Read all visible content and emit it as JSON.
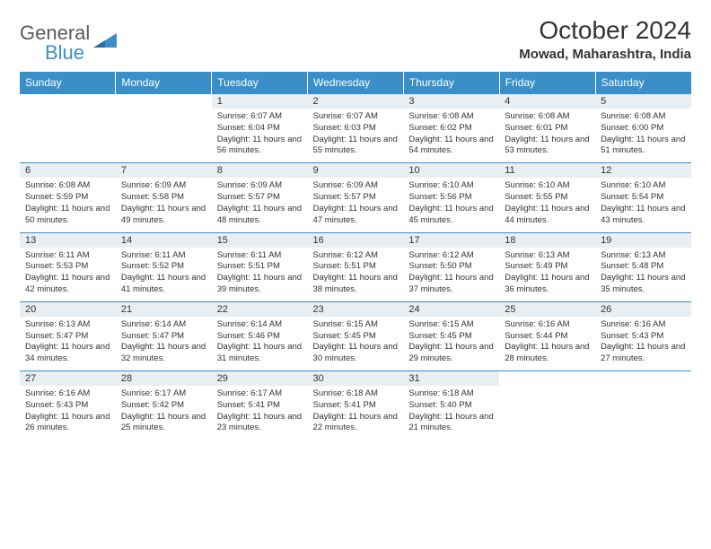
{
  "logo": {
    "text1": "General",
    "text2": "Blue"
  },
  "title": "October 2024",
  "location": "Mowad, Maharashtra, India",
  "colors": {
    "header_bg": "#3a8fc8",
    "header_fg": "#ffffff",
    "daynum_bg": "#e8eef2",
    "border": "#3a8fc8",
    "text": "#333333",
    "logo_gray": "#5a5a5a",
    "logo_blue": "#3a8fc8"
  },
  "weekdays": [
    "Sunday",
    "Monday",
    "Tuesday",
    "Wednesday",
    "Thursday",
    "Friday",
    "Saturday"
  ],
  "weeks": [
    [
      {
        "empty": true
      },
      {
        "empty": true
      },
      {
        "n": "1",
        "sr": "6:07 AM",
        "ss": "6:04 PM",
        "dl": "11 hours and 56 minutes."
      },
      {
        "n": "2",
        "sr": "6:07 AM",
        "ss": "6:03 PM",
        "dl": "11 hours and 55 minutes."
      },
      {
        "n": "3",
        "sr": "6:08 AM",
        "ss": "6:02 PM",
        "dl": "11 hours and 54 minutes."
      },
      {
        "n": "4",
        "sr": "6:08 AM",
        "ss": "6:01 PM",
        "dl": "11 hours and 53 minutes."
      },
      {
        "n": "5",
        "sr": "6:08 AM",
        "ss": "6:00 PM",
        "dl": "11 hours and 51 minutes."
      }
    ],
    [
      {
        "n": "6",
        "sr": "6:08 AM",
        "ss": "5:59 PM",
        "dl": "11 hours and 50 minutes."
      },
      {
        "n": "7",
        "sr": "6:09 AM",
        "ss": "5:58 PM",
        "dl": "11 hours and 49 minutes."
      },
      {
        "n": "8",
        "sr": "6:09 AM",
        "ss": "5:57 PM",
        "dl": "11 hours and 48 minutes."
      },
      {
        "n": "9",
        "sr": "6:09 AM",
        "ss": "5:57 PM",
        "dl": "11 hours and 47 minutes."
      },
      {
        "n": "10",
        "sr": "6:10 AM",
        "ss": "5:56 PM",
        "dl": "11 hours and 45 minutes."
      },
      {
        "n": "11",
        "sr": "6:10 AM",
        "ss": "5:55 PM",
        "dl": "11 hours and 44 minutes."
      },
      {
        "n": "12",
        "sr": "6:10 AM",
        "ss": "5:54 PM",
        "dl": "11 hours and 43 minutes."
      }
    ],
    [
      {
        "n": "13",
        "sr": "6:11 AM",
        "ss": "5:53 PM",
        "dl": "11 hours and 42 minutes."
      },
      {
        "n": "14",
        "sr": "6:11 AM",
        "ss": "5:52 PM",
        "dl": "11 hours and 41 minutes."
      },
      {
        "n": "15",
        "sr": "6:11 AM",
        "ss": "5:51 PM",
        "dl": "11 hours and 39 minutes."
      },
      {
        "n": "16",
        "sr": "6:12 AM",
        "ss": "5:51 PM",
        "dl": "11 hours and 38 minutes."
      },
      {
        "n": "17",
        "sr": "6:12 AM",
        "ss": "5:50 PM",
        "dl": "11 hours and 37 minutes."
      },
      {
        "n": "18",
        "sr": "6:13 AM",
        "ss": "5:49 PM",
        "dl": "11 hours and 36 minutes."
      },
      {
        "n": "19",
        "sr": "6:13 AM",
        "ss": "5:48 PM",
        "dl": "11 hours and 35 minutes."
      }
    ],
    [
      {
        "n": "20",
        "sr": "6:13 AM",
        "ss": "5:47 PM",
        "dl": "11 hours and 34 minutes."
      },
      {
        "n": "21",
        "sr": "6:14 AM",
        "ss": "5:47 PM",
        "dl": "11 hours and 32 minutes."
      },
      {
        "n": "22",
        "sr": "6:14 AM",
        "ss": "5:46 PM",
        "dl": "11 hours and 31 minutes."
      },
      {
        "n": "23",
        "sr": "6:15 AM",
        "ss": "5:45 PM",
        "dl": "11 hours and 30 minutes."
      },
      {
        "n": "24",
        "sr": "6:15 AM",
        "ss": "5:45 PM",
        "dl": "11 hours and 29 minutes."
      },
      {
        "n": "25",
        "sr": "6:16 AM",
        "ss": "5:44 PM",
        "dl": "11 hours and 28 minutes."
      },
      {
        "n": "26",
        "sr": "6:16 AM",
        "ss": "5:43 PM",
        "dl": "11 hours and 27 minutes."
      }
    ],
    [
      {
        "n": "27",
        "sr": "6:16 AM",
        "ss": "5:43 PM",
        "dl": "11 hours and 26 minutes."
      },
      {
        "n": "28",
        "sr": "6:17 AM",
        "ss": "5:42 PM",
        "dl": "11 hours and 25 minutes."
      },
      {
        "n": "29",
        "sr": "6:17 AM",
        "ss": "5:41 PM",
        "dl": "11 hours and 23 minutes."
      },
      {
        "n": "30",
        "sr": "6:18 AM",
        "ss": "5:41 PM",
        "dl": "11 hours and 22 minutes."
      },
      {
        "n": "31",
        "sr": "6:18 AM",
        "ss": "5:40 PM",
        "dl": "11 hours and 21 minutes."
      },
      {
        "empty": true
      },
      {
        "empty": true
      }
    ]
  ],
  "labels": {
    "sunrise": "Sunrise:",
    "sunset": "Sunset:",
    "daylight": "Daylight:"
  }
}
